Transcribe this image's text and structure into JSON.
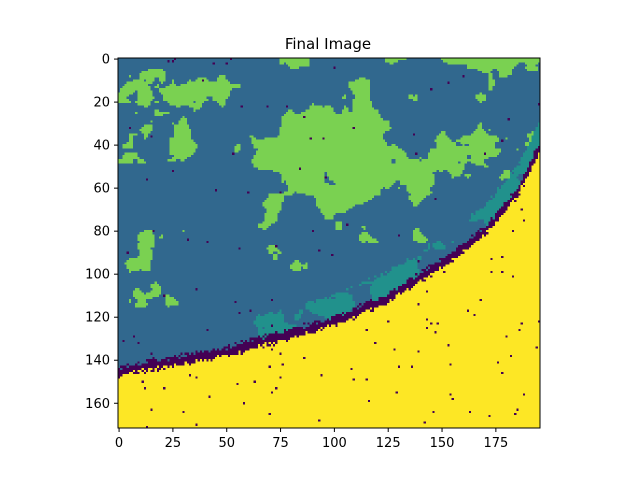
{
  "chart_data": {
    "type": "heatmap",
    "title": "Final Image",
    "colormap": "viridis",
    "image_size": {
      "columns": 196,
      "rows": 172
    },
    "x_ticks": [
      0,
      25,
      50,
      75,
      100,
      125,
      150,
      175
    ],
    "y_ticks": [
      0,
      20,
      40,
      60,
      80,
      100,
      120,
      140,
      160
    ],
    "xlim": [
      -0.5,
      195.5
    ],
    "ylim": [
      171.5,
      -0.5
    ],
    "grid": false,
    "classes": [
      {
        "value": 0,
        "color": "#440154"
      },
      {
        "value": 1,
        "color": "#31688e"
      },
      {
        "value": 2,
        "color": "#21918c"
      },
      {
        "value": 3,
        "color": "#7ad151"
      },
      {
        "value": 4,
        "color": "#fde725"
      }
    ],
    "coastline": {
      "description_points_col_row": [
        [
          0,
          145
        ],
        [
          50,
          136
        ],
        [
          100,
          122
        ],
        [
          125,
          111
        ],
        [
          150,
          95
        ],
        [
          170,
          80
        ],
        [
          185,
          62
        ],
        [
          195,
          42
        ]
      ]
    }
  }
}
